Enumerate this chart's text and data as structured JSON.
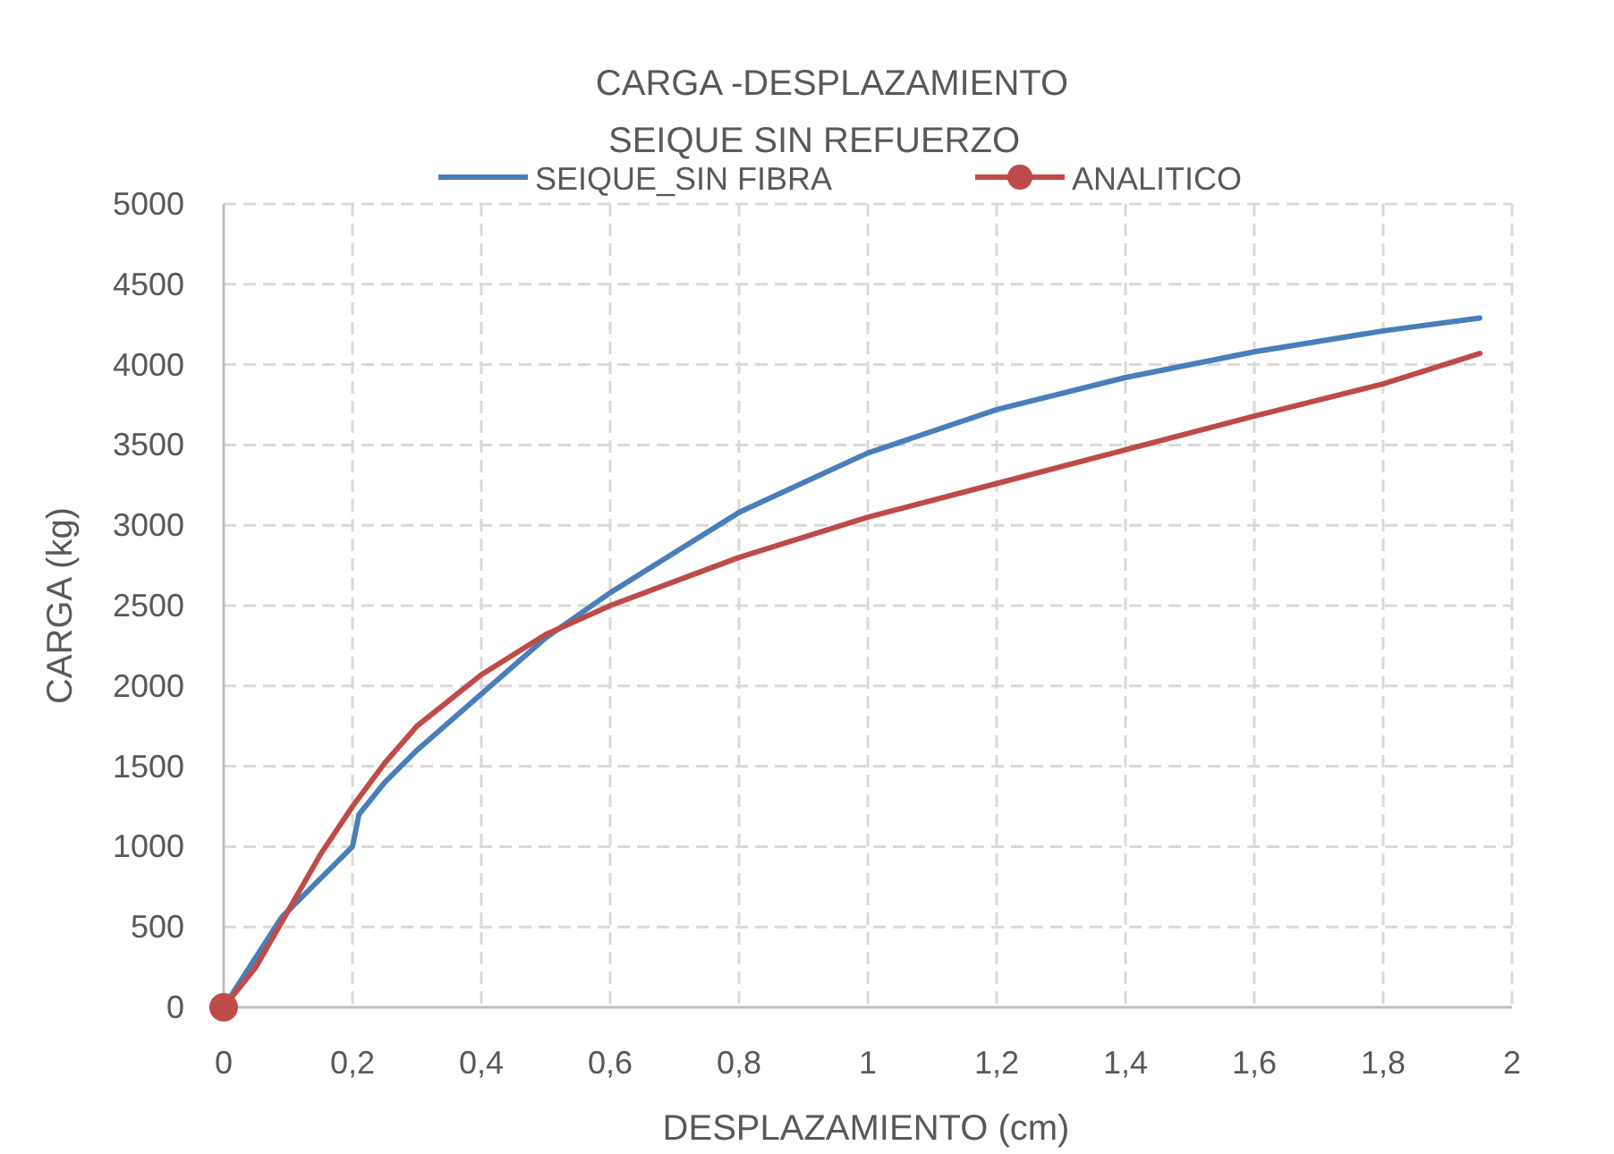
{
  "chart_data": {
    "type": "line",
    "title": "CARGA -DESPLAZAMIENTO",
    "subtitle": "SEIQUE  SIN REFUERZO",
    "xlabel": "DESPLAZAMIENTO (cm)",
    "ylabel": "CARGA (kg)",
    "xlim": [
      0,
      2
    ],
    "xticks": [
      0,
      {
        "value": 0.2,
        "label": "0,2"
      },
      {
        "value": 0.4,
        "label": "0,4"
      },
      {
        "value": 0.6,
        "label": "0,6"
      },
      {
        "value": 0.8,
        "label": "0,8"
      },
      1,
      {
        "value": 1.2,
        "label": "1,2"
      },
      {
        "value": 1.4,
        "label": "1,4"
      },
      {
        "value": 1.6,
        "label": "1,6"
      },
      {
        "value": 1.8,
        "label": "1,8"
      },
      2
    ],
    "ylim": [
      0,
      5000
    ],
    "yticks": [
      0,
      500,
      1000,
      1500,
      2000,
      2500,
      3000,
      3500,
      4000,
      4500,
      5000
    ],
    "grid": true,
    "legend": "top",
    "series": [
      {
        "name": "SEIQUE_SIN FIBRA",
        "color": "#4a7ebb",
        "marker": "none",
        "x": [
          0,
          0.09,
          0.2,
          0.21,
          0.25,
          0.3,
          0.4,
          0.5,
          0.6,
          0.8,
          1.0,
          1.2,
          1.4,
          1.6,
          1.8,
          1.95
        ],
        "values": [
          0,
          560,
          1000,
          1200,
          1400,
          1600,
          1950,
          2300,
          2580,
          3080,
          3450,
          3720,
          3920,
          4080,
          4210,
          4290
        ]
      },
      {
        "name": "ANALITICO",
        "color": "#be4b48",
        "x": [
          0,
          0.05,
          0.1,
          0.15,
          0.2,
          0.25,
          0.3,
          0.4,
          0.5,
          0.6,
          0.8,
          1.0,
          1.2,
          1.4,
          1.6,
          1.8,
          1.95
        ],
        "values": [
          0,
          250,
          600,
          950,
          1250,
          1520,
          1750,
          2070,
          2320,
          2500,
          2800,
          3050,
          3260,
          3470,
          3680,
          3880,
          4070
        ]
      },
      {
        "type": "scatter",
        "color": "#be4b48",
        "marker": "circle",
        "x": [
          0
        ],
        "values": [
          0
        ]
      }
    ]
  }
}
